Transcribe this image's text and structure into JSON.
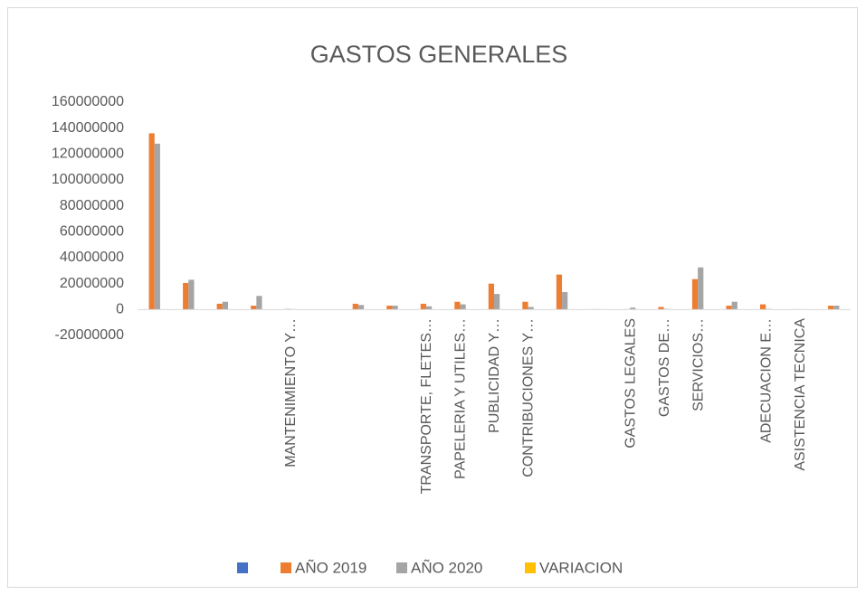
{
  "chart_data": {
    "type": "bar",
    "title": "GASTOS GENERALES",
    "categories": [
      null,
      null,
      null,
      null,
      "MANTENIMIENTO Y…",
      null,
      null,
      null,
      "TRANSPORTE, FLETES…",
      "PAPELERIA Y UTILES…",
      "PUBLICIDAD Y…",
      "CONTRIBUCIONES Y…",
      null,
      null,
      "GASTOS LEGALES",
      "GASTOS DE…",
      "SERVICIOS…",
      null,
      "ADECUACION E…",
      "ASISTENCIA TECNICA",
      null
    ],
    "series": [
      {
        "name": null,
        "color": "#4472c4",
        "values": [
          0,
          0,
          0,
          0,
          0,
          0,
          0,
          0,
          0,
          0,
          0,
          0,
          0,
          0,
          0,
          0,
          0,
          0,
          0,
          0,
          0
        ]
      },
      {
        "name": "AÑO 2019",
        "color": "#ed7d31",
        "values": [
          136000000,
          20500000,
          4500000,
          3000000,
          500000,
          200000,
          4500000,
          3000000,
          4500000,
          6000000,
          20000000,
          6000000,
          27000000,
          300000,
          300000,
          2000000,
          23500000,
          3000000,
          4000000,
          300000,
          3000000
        ]
      },
      {
        "name": "AÑO 2020",
        "color": "#a5a5a5",
        "values": [
          128000000,
          23000000,
          6000000,
          10500000,
          300000,
          200000,
          3500000,
          3000000,
          2500000,
          4000000,
          12000000,
          2000000,
          13500000,
          300000,
          1500000,
          500000,
          32500000,
          6000000,
          500000,
          300000,
          3000000
        ]
      },
      {
        "name": "VARIACION",
        "color": "#ffc000",
        "values": [
          0,
          0,
          0,
          0,
          0,
          0,
          0,
          0,
          0,
          0,
          0,
          0,
          0,
          0,
          0,
          0,
          0,
          0,
          0,
          0,
          0
        ]
      }
    ],
    "ylim": [
      -20000000,
      160000000
    ],
    "yticks": [
      -20000000,
      0,
      20000000,
      40000000,
      60000000,
      80000000,
      100000000,
      120000000,
      140000000,
      160000000
    ],
    "grid": false,
    "legend": "bottom"
  }
}
